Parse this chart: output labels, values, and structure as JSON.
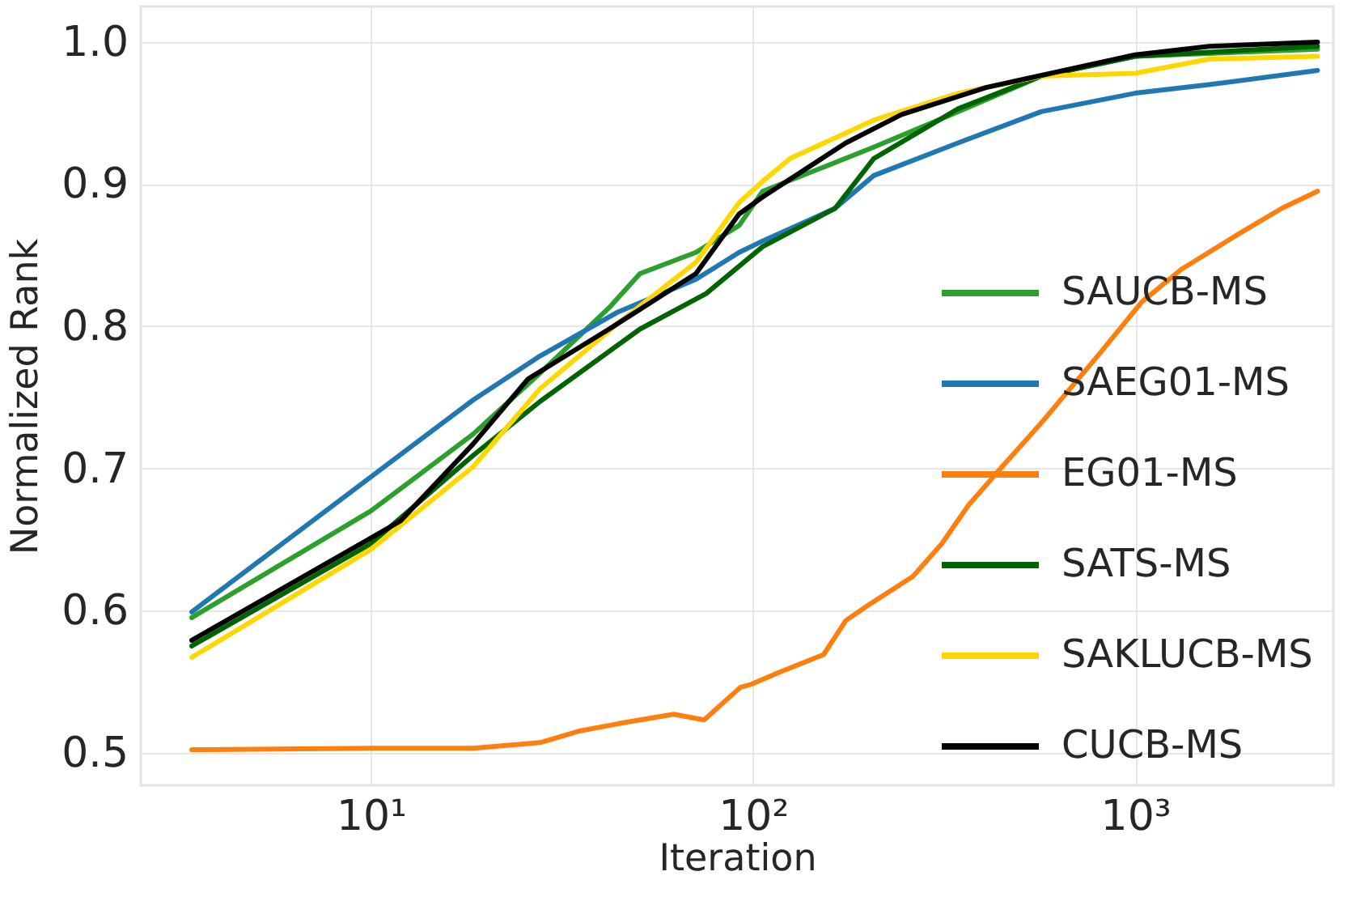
{
  "chart_data": {
    "type": "line",
    "xlabel": "Iteration",
    "ylabel": "Normalized Rank",
    "log": "x",
    "grid": true,
    "legend": "bottom right",
    "line_style": "solid",
    "xlim": [
      2.5,
      3300
    ],
    "xticks": [
      {
        "value": 10,
        "label": "10¹"
      },
      {
        "value": 100,
        "label": "10²"
      },
      {
        "value": 1000,
        "label": "10³"
      }
    ],
    "ylim": [
      0.477,
      1.025
    ],
    "yticks": [
      0.5,
      0.6,
      0.7,
      0.8,
      0.9,
      {
        "value": 1,
        "label": "1.0"
      }
    ],
    "series": [
      {
        "name": "SAUCB-MS",
        "color": "#2ca02c",
        "x": [
          3.4,
          10,
          18.5,
          27.7,
          42,
          50.6,
          70.9,
          92,
          106,
          207,
          344,
          568,
          1000,
          3000
        ],
        "values": [
          0.595,
          0.67,
          0.724,
          0.767,
          0.813,
          0.837,
          0.852,
          0.871,
          0.895,
          0.926,
          0.951,
          0.976,
          0.99,
          0.995
        ]
      },
      {
        "name": "SAEG01-MS",
        "color": "#1f77b4",
        "x": [
          3.4,
          10,
          18.5,
          27.7,
          44.3,
          70.9,
          92,
          106,
          164,
          207,
          344,
          568,
          1000,
          1560,
          3000
        ],
        "values": [
          0.599,
          0.694,
          0.748,
          0.779,
          0.81,
          0.833,
          0.852,
          0.86,
          0.883,
          0.906,
          0.929,
          0.951,
          0.964,
          0.97,
          0.98
        ]
      },
      {
        "name": "EG01-MS",
        "color": "#ff7f0e",
        "x": [
          3.4,
          10,
          18.5,
          27.7,
          34.9,
          45.8,
          62,
          74.5,
          92.7,
          98.9,
          116,
          153,
          175,
          201,
          262,
          312,
          366,
          448,
          568,
          797,
          1040,
          1320,
          1840,
          2420,
          3000
        ],
        "values": [
          0.502,
          0.503,
          0.503,
          0.507,
          0.515,
          0.521,
          0.527,
          0.523,
          0.546,
          0.548,
          0.556,
          0.569,
          0.593,
          0.604,
          0.624,
          0.647,
          0.674,
          0.701,
          0.732,
          0.779,
          0.817,
          0.84,
          0.864,
          0.883,
          0.895
        ]
      },
      {
        "name": "SATS-MS",
        "color": "#006400",
        "x": [
          3.4,
          10,
          18.5,
          27.7,
          50.6,
          75.4,
          106,
          164,
          207,
          344,
          568,
          1000,
          3000
        ],
        "values": [
          0.575,
          0.647,
          0.709,
          0.747,
          0.798,
          0.823,
          0.856,
          0.883,
          0.918,
          0.953,
          0.976,
          0.99,
          0.997
        ]
      },
      {
        "name": "SAKLUCB-MS",
        "color": "#ffd700",
        "x": [
          3.4,
          10,
          18.5,
          27.7,
          44.3,
          70.9,
          92,
          106,
          125,
          207,
          344,
          568,
          1000,
          1560,
          3000
        ],
        "values": [
          0.567,
          0.643,
          0.701,
          0.756,
          0.802,
          0.845,
          0.887,
          0.902,
          0.918,
          0.945,
          0.964,
          0.976,
          0.978,
          0.988,
          0.99
        ]
      },
      {
        "name": "CUCB-MS",
        "color": "#000000",
        "x": [
          3.4,
          10,
          11.95,
          18.5,
          25.8,
          42,
          70.9,
          92,
          106,
          175,
          245,
          407,
          1000,
          1560,
          3000
        ],
        "values": [
          0.579,
          0.651,
          0.663,
          0.717,
          0.763,
          0.798,
          0.837,
          0.879,
          0.891,
          0.929,
          0.949,
          0.968,
          0.991,
          0.997,
          1.0
        ]
      }
    ]
  }
}
